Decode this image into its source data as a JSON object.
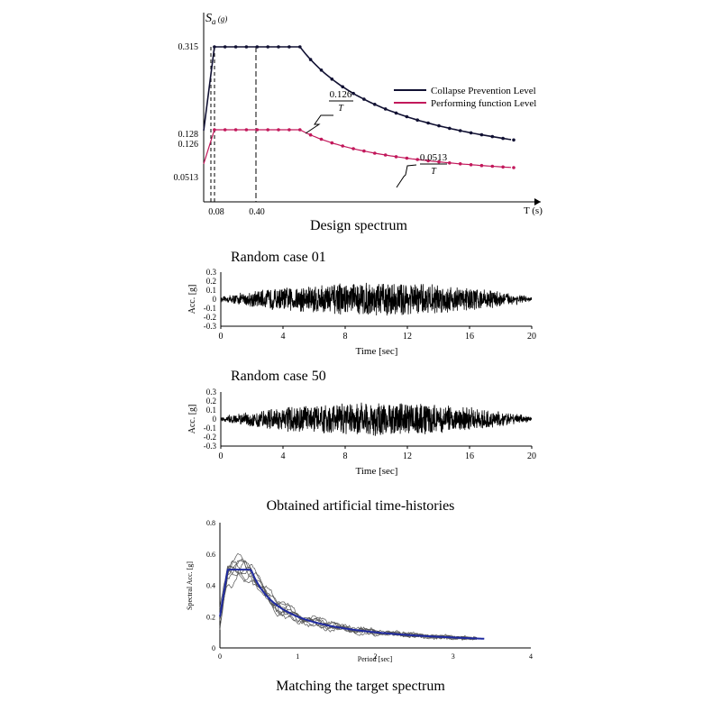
{
  "chart_data": [
    {
      "type": "line",
      "caption": "Design spectrum",
      "ylabel_sym": "S",
      "ylabel_sub": "a",
      "ylabel_unit": " (g)",
      "xlabel": "T (s)",
      "y_ticks": [
        "0.315",
        "0.128",
        "0.126",
        "0.0513"
      ],
      "x_ticks": [
        "0.08",
        "0.40"
      ],
      "series": [
        {
          "name": "Collapse Prevention Level",
          "color": "#111133",
          "plateau": 0.315,
          "numerator": "0.126",
          "start": 0.126
        },
        {
          "name": "Performing function Level",
          "color": "#c2185b",
          "plateau": 0.128,
          "numerator": "0.0513",
          "start": 0.0513
        }
      ],
      "annotations": [
        {
          "numerator": "0.126",
          "denominator": "T"
        },
        {
          "numerator": "0.0513",
          "denominator": "T"
        }
      ]
    },
    {
      "type": "line",
      "title": "Random case 01",
      "xlabel": "Time [sec]",
      "ylabel": "Acc. [g]",
      "xlim": [
        0,
        20
      ],
      "ylim": [
        -0.3,
        0.3
      ],
      "x_ticks": [
        "0",
        "4",
        "8",
        "12",
        "16",
        "20"
      ],
      "y_ticks": [
        "0.3",
        "0.2",
        "0.1",
        "0",
        "-0.1",
        "-0.2",
        "-0.3"
      ]
    },
    {
      "type": "line",
      "title": "Random case 50",
      "xlabel": "Time [sec]",
      "ylabel": "Acc. [g]",
      "xlim": [
        0,
        20
      ],
      "ylim": [
        -0.3,
        0.3
      ],
      "x_ticks": [
        "0",
        "4",
        "8",
        "12",
        "16",
        "20"
      ],
      "y_ticks": [
        "0.3",
        "0.2",
        "0.1",
        "0",
        "-0.1",
        "-0.2",
        "-0.3"
      ]
    },
    {
      "type": "line",
      "xlabel": "Period [sec]",
      "ylabel": "Spectral Acc. [g]",
      "xlim": [
        0,
        4
      ],
      "ylim": [
        0,
        0.8
      ],
      "x_ticks": [
        "0",
        "1",
        "2",
        "3",
        "4"
      ],
      "y_ticks": [
        "0.8",
        "0.6",
        "0.4",
        "0.2",
        "0"
      ],
      "target_color": "#1f2aa0",
      "sample_color": "#555555"
    }
  ],
  "captions": {
    "histories": "Obtained artificial time-histories",
    "matching": "Matching the target spectrum"
  }
}
